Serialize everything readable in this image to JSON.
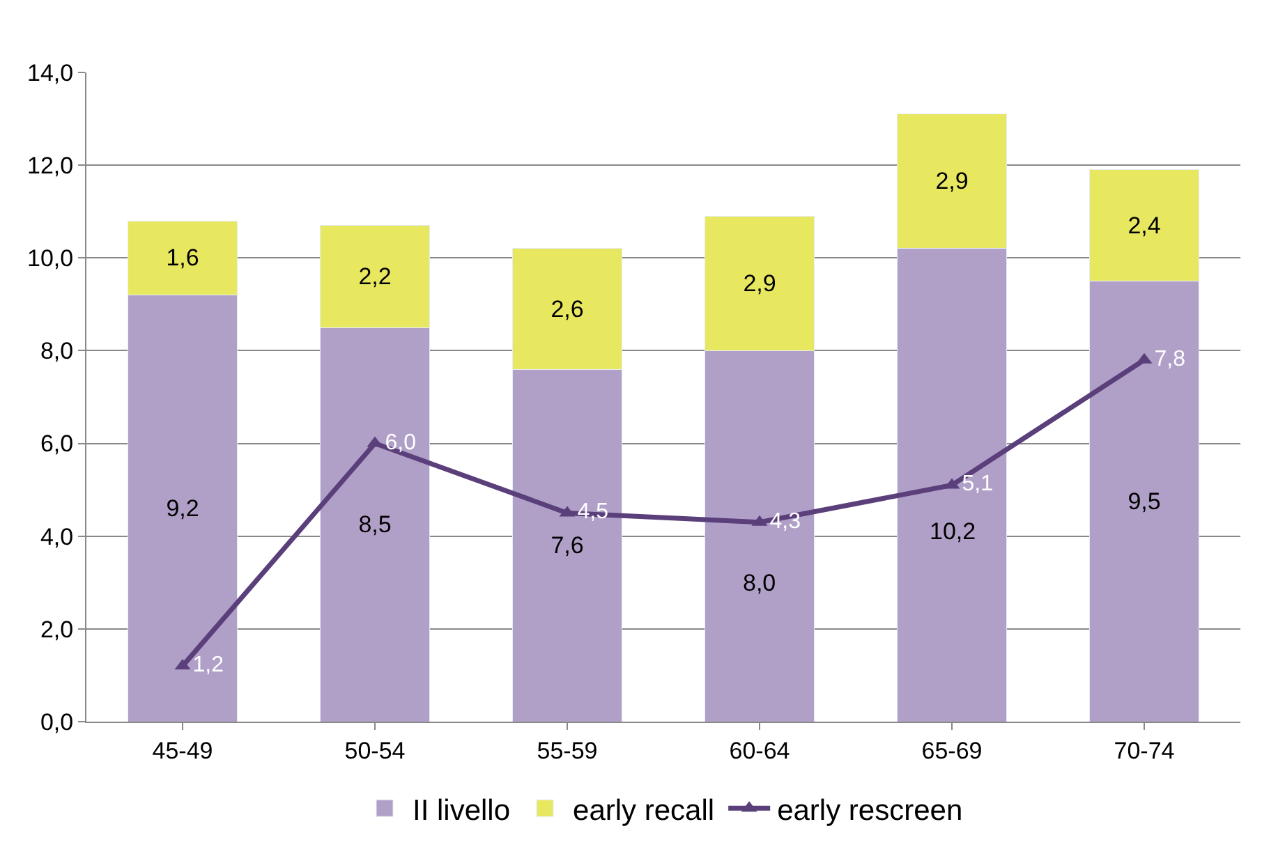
{
  "chart_data": {
    "type": "bar",
    "stacked": true,
    "categories": [
      "45-49",
      "50-54",
      "55-59",
      "60-64",
      "65-69",
      "70-74"
    ],
    "series": [
      {
        "name": "II livello",
        "color": "#b0a0c8",
        "values": [
          9.2,
          8.5,
          7.6,
          8.0,
          10.2,
          9.5
        ],
        "value_labels": [
          "9,2",
          "8,5",
          "7,6",
          "8,0",
          "10,2",
          "9,5"
        ]
      },
      {
        "name": "early recall",
        "color": "#e8e860",
        "values": [
          1.6,
          2.2,
          2.6,
          2.9,
          2.9,
          2.4
        ],
        "value_labels": [
          "1,6",
          "2,2",
          "2,6",
          "2,9",
          "2,9",
          "2,4"
        ]
      },
      {
        "name": "early rescreen",
        "type": "line",
        "color": "#5a3f7a",
        "marker": "triangle",
        "line_style": "solid",
        "values": [
          1.2,
          6.0,
          4.5,
          4.3,
          5.1,
          7.8
        ],
        "value_labels": [
          "1,2",
          "6,0",
          "4,5",
          "4,3",
          "5,1",
          "7,8"
        ]
      }
    ],
    "ylim": [
      0,
      14
    ],
    "yticks": [
      {
        "value": 0,
        "label": "0,0"
      },
      {
        "value": 2,
        "label": "2,0"
      },
      {
        "value": 4,
        "label": "4,0"
      },
      {
        "value": 6,
        "label": "6,0"
      },
      {
        "value": 8,
        "label": "8,0"
      },
      {
        "value": 10,
        "label": "10,0"
      },
      {
        "value": 12,
        "label": "12,0"
      },
      {
        "value": 14,
        "label": "14,0"
      }
    ],
    "grid": "y",
    "legend": "bottom"
  }
}
